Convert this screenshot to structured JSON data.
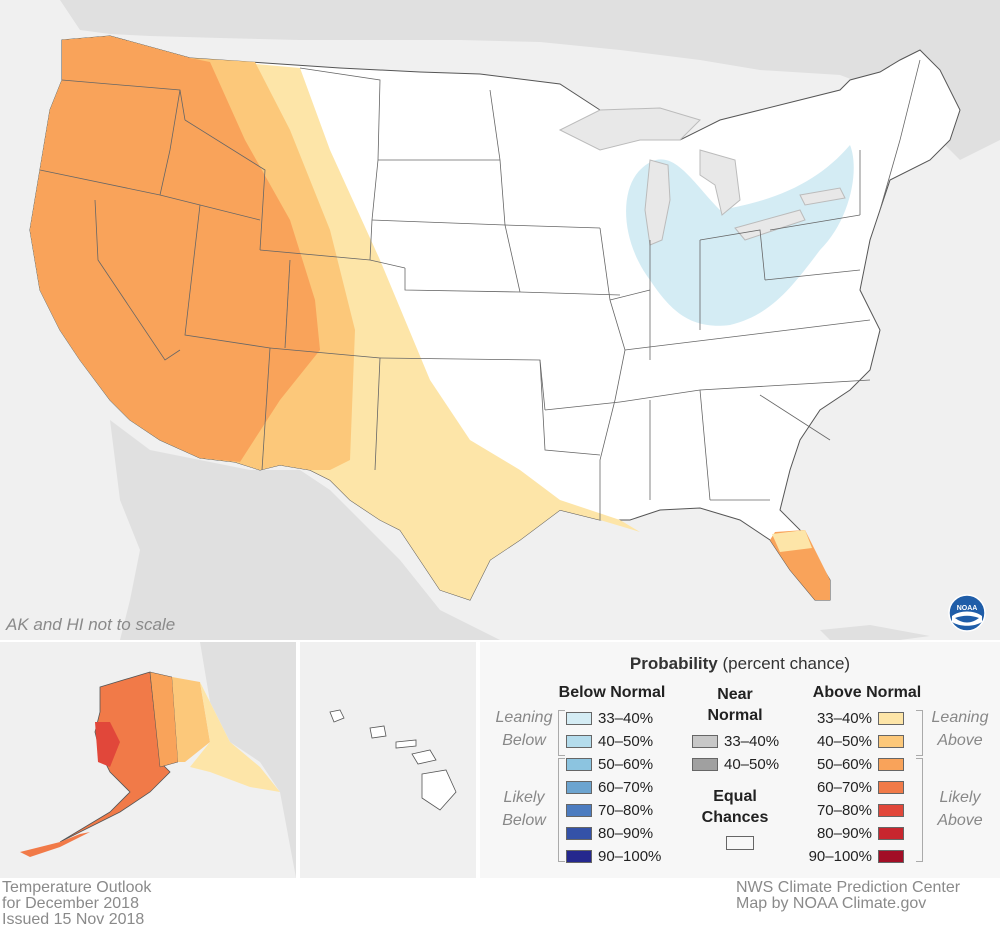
{
  "map_note": "AK and HI not to scale",
  "footer_left": [
    "Temperature Outlook",
    "for December 2018",
    "Issued 15 Nov 2018"
  ],
  "footer_right": [
    "NWS Climate Prediction Center",
    "Map by NOAA Climate.gov"
  ],
  "logo_text": "NOAA",
  "legend": {
    "title_bold": "Probability",
    "title_rest": "(percent chance)",
    "below": {
      "heading": "Below Normal",
      "leaning_label": [
        "Leaning",
        "Below"
      ],
      "likely_label": [
        "Likely",
        "Below"
      ],
      "bins": [
        {
          "label": "33–40%",
          "color": "#d4ecf4"
        },
        {
          "label": "40–50%",
          "color": "#b4dcec"
        },
        {
          "label": "50–60%",
          "color": "#8cc4e0"
        },
        {
          "label": "60–70%",
          "color": "#6ca4d0"
        },
        {
          "label": "70–80%",
          "color": "#4c7cc0"
        },
        {
          "label": "80–90%",
          "color": "#3452a8"
        },
        {
          "label": "90–100%",
          "color": "#25288e"
        }
      ]
    },
    "near": {
      "heading": [
        "Near",
        "Normal"
      ],
      "bins": [
        {
          "label": "33–40%",
          "color": "#c8c8c8"
        },
        {
          "label": "40–50%",
          "color": "#a0a0a0"
        }
      ]
    },
    "equal": {
      "heading": [
        "Equal",
        "Chances"
      ],
      "color": "#ffffff"
    },
    "above": {
      "heading": "Above Normal",
      "leaning_label": [
        "Leaning",
        "Above"
      ],
      "likely_label": [
        "Likely",
        "Above"
      ],
      "bins": [
        {
          "label": "33–40%",
          "color": "#fde5a8"
        },
        {
          "label": "40–50%",
          "color": "#fcc87a"
        },
        {
          "label": "50–60%",
          "color": "#f9a35a"
        },
        {
          "label": "60–70%",
          "color": "#f17a48"
        },
        {
          "label": "70–80%",
          "color": "#e1473a"
        },
        {
          "label": "80–90%",
          "color": "#c8262e"
        },
        {
          "label": "90–100%",
          "color": "#a20e26"
        }
      ]
    }
  },
  "colors": {
    "land_bg": "#e2e2e2",
    "water": "#f0f0f0",
    "ec": "#ffffff",
    "boundary": "#555555"
  }
}
